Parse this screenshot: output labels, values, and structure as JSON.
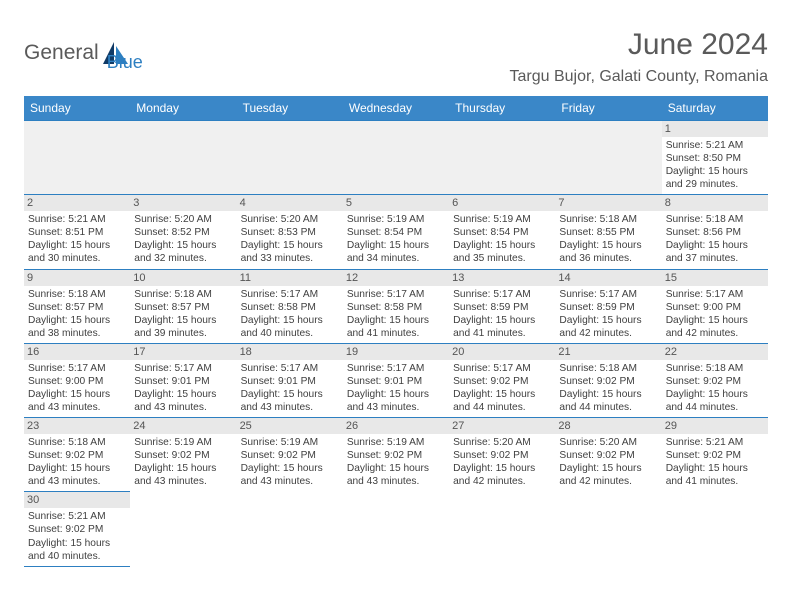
{
  "logo": {
    "part1": "General",
    "part2": "Blue"
  },
  "title": "June 2024",
  "location": "Targu Bujor, Galati County, Romania",
  "colors": {
    "header_bg": "#3a87c8",
    "header_fg": "#ffffff",
    "border": "#2d7fc1",
    "daynum_bg": "#e8e8e8",
    "text": "#404040"
  },
  "daynames": [
    "Sunday",
    "Monday",
    "Tuesday",
    "Wednesday",
    "Thursday",
    "Friday",
    "Saturday"
  ],
  "blanks_before": 6,
  "days": [
    {
      "n": "1",
      "sunrise": "Sunrise: 5:21 AM",
      "sunset": "Sunset: 8:50 PM",
      "d1": "Daylight: 15 hours",
      "d2": "and 29 minutes."
    },
    {
      "n": "2",
      "sunrise": "Sunrise: 5:21 AM",
      "sunset": "Sunset: 8:51 PM",
      "d1": "Daylight: 15 hours",
      "d2": "and 30 minutes."
    },
    {
      "n": "3",
      "sunrise": "Sunrise: 5:20 AM",
      "sunset": "Sunset: 8:52 PM",
      "d1": "Daylight: 15 hours",
      "d2": "and 32 minutes."
    },
    {
      "n": "4",
      "sunrise": "Sunrise: 5:20 AM",
      "sunset": "Sunset: 8:53 PM",
      "d1": "Daylight: 15 hours",
      "d2": "and 33 minutes."
    },
    {
      "n": "5",
      "sunrise": "Sunrise: 5:19 AM",
      "sunset": "Sunset: 8:54 PM",
      "d1": "Daylight: 15 hours",
      "d2": "and 34 minutes."
    },
    {
      "n": "6",
      "sunrise": "Sunrise: 5:19 AM",
      "sunset": "Sunset: 8:54 PM",
      "d1": "Daylight: 15 hours",
      "d2": "and 35 minutes."
    },
    {
      "n": "7",
      "sunrise": "Sunrise: 5:18 AM",
      "sunset": "Sunset: 8:55 PM",
      "d1": "Daylight: 15 hours",
      "d2": "and 36 minutes."
    },
    {
      "n": "8",
      "sunrise": "Sunrise: 5:18 AM",
      "sunset": "Sunset: 8:56 PM",
      "d1": "Daylight: 15 hours",
      "d2": "and 37 minutes."
    },
    {
      "n": "9",
      "sunrise": "Sunrise: 5:18 AM",
      "sunset": "Sunset: 8:57 PM",
      "d1": "Daylight: 15 hours",
      "d2": "and 38 minutes."
    },
    {
      "n": "10",
      "sunrise": "Sunrise: 5:18 AM",
      "sunset": "Sunset: 8:57 PM",
      "d1": "Daylight: 15 hours",
      "d2": "and 39 minutes."
    },
    {
      "n": "11",
      "sunrise": "Sunrise: 5:17 AM",
      "sunset": "Sunset: 8:58 PM",
      "d1": "Daylight: 15 hours",
      "d2": "and 40 minutes."
    },
    {
      "n": "12",
      "sunrise": "Sunrise: 5:17 AM",
      "sunset": "Sunset: 8:58 PM",
      "d1": "Daylight: 15 hours",
      "d2": "and 41 minutes."
    },
    {
      "n": "13",
      "sunrise": "Sunrise: 5:17 AM",
      "sunset": "Sunset: 8:59 PM",
      "d1": "Daylight: 15 hours",
      "d2": "and 41 minutes."
    },
    {
      "n": "14",
      "sunrise": "Sunrise: 5:17 AM",
      "sunset": "Sunset: 8:59 PM",
      "d1": "Daylight: 15 hours",
      "d2": "and 42 minutes."
    },
    {
      "n": "15",
      "sunrise": "Sunrise: 5:17 AM",
      "sunset": "Sunset: 9:00 PM",
      "d1": "Daylight: 15 hours",
      "d2": "and 42 minutes."
    },
    {
      "n": "16",
      "sunrise": "Sunrise: 5:17 AM",
      "sunset": "Sunset: 9:00 PM",
      "d1": "Daylight: 15 hours",
      "d2": "and 43 minutes."
    },
    {
      "n": "17",
      "sunrise": "Sunrise: 5:17 AM",
      "sunset": "Sunset: 9:01 PM",
      "d1": "Daylight: 15 hours",
      "d2": "and 43 minutes."
    },
    {
      "n": "18",
      "sunrise": "Sunrise: 5:17 AM",
      "sunset": "Sunset: 9:01 PM",
      "d1": "Daylight: 15 hours",
      "d2": "and 43 minutes."
    },
    {
      "n": "19",
      "sunrise": "Sunrise: 5:17 AM",
      "sunset": "Sunset: 9:01 PM",
      "d1": "Daylight: 15 hours",
      "d2": "and 43 minutes."
    },
    {
      "n": "20",
      "sunrise": "Sunrise: 5:17 AM",
      "sunset": "Sunset: 9:02 PM",
      "d1": "Daylight: 15 hours",
      "d2": "and 44 minutes."
    },
    {
      "n": "21",
      "sunrise": "Sunrise: 5:18 AM",
      "sunset": "Sunset: 9:02 PM",
      "d1": "Daylight: 15 hours",
      "d2": "and 44 minutes."
    },
    {
      "n": "22",
      "sunrise": "Sunrise: 5:18 AM",
      "sunset": "Sunset: 9:02 PM",
      "d1": "Daylight: 15 hours",
      "d2": "and 44 minutes."
    },
    {
      "n": "23",
      "sunrise": "Sunrise: 5:18 AM",
      "sunset": "Sunset: 9:02 PM",
      "d1": "Daylight: 15 hours",
      "d2": "and 43 minutes."
    },
    {
      "n": "24",
      "sunrise": "Sunrise: 5:19 AM",
      "sunset": "Sunset: 9:02 PM",
      "d1": "Daylight: 15 hours",
      "d2": "and 43 minutes."
    },
    {
      "n": "25",
      "sunrise": "Sunrise: 5:19 AM",
      "sunset": "Sunset: 9:02 PM",
      "d1": "Daylight: 15 hours",
      "d2": "and 43 minutes."
    },
    {
      "n": "26",
      "sunrise": "Sunrise: 5:19 AM",
      "sunset": "Sunset: 9:02 PM",
      "d1": "Daylight: 15 hours",
      "d2": "and 43 minutes."
    },
    {
      "n": "27",
      "sunrise": "Sunrise: 5:20 AM",
      "sunset": "Sunset: 9:02 PM",
      "d1": "Daylight: 15 hours",
      "d2": "and 42 minutes."
    },
    {
      "n": "28",
      "sunrise": "Sunrise: 5:20 AM",
      "sunset": "Sunset: 9:02 PM",
      "d1": "Daylight: 15 hours",
      "d2": "and 42 minutes."
    },
    {
      "n": "29",
      "sunrise": "Sunrise: 5:21 AM",
      "sunset": "Sunset: 9:02 PM",
      "d1": "Daylight: 15 hours",
      "d2": "and 41 minutes."
    },
    {
      "n": "30",
      "sunrise": "Sunrise: 5:21 AM",
      "sunset": "Sunset: 9:02 PM",
      "d1": "Daylight: 15 hours",
      "d2": "and 40 minutes."
    }
  ]
}
